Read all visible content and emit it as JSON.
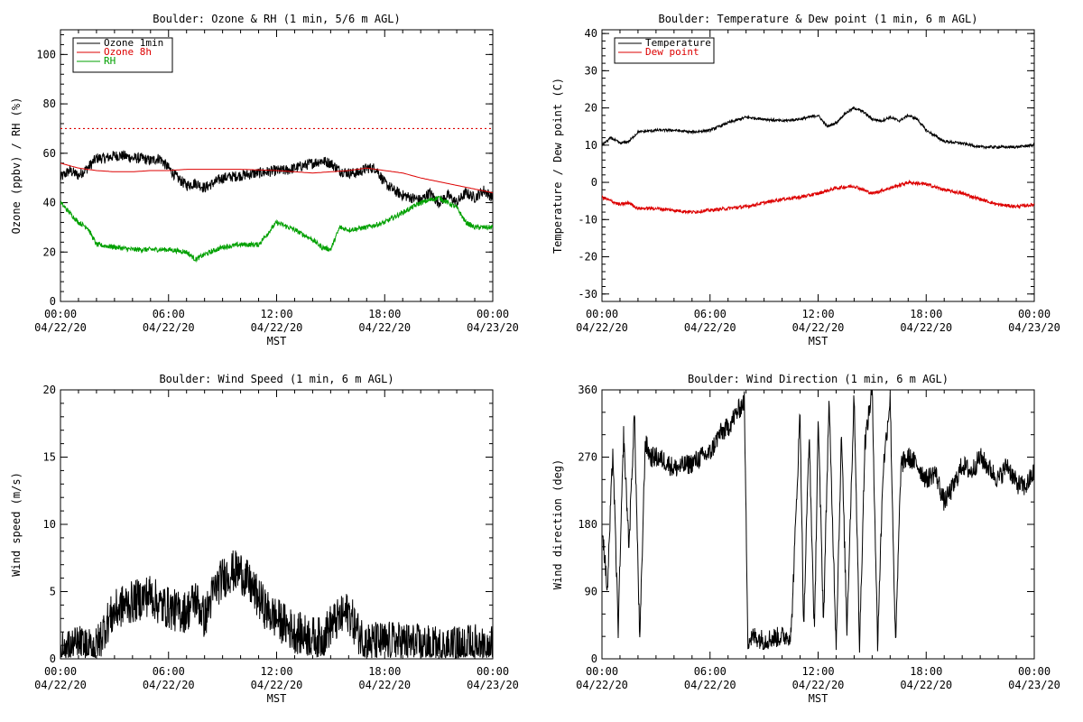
{
  "colors": {
    "black": "#000000",
    "red": "#dd0000",
    "green": "#00a000"
  },
  "chart_data": [
    {
      "id": "ozone-rh",
      "type": "line",
      "title": "Boulder: Ozone & RH (1 min, 5/6 m AGL)",
      "xlabel": "MST",
      "ylabel": "Ozone (ppbv) / RH (%)",
      "xlim": [
        0,
        24
      ],
      "ylim": [
        0,
        110
      ],
      "y_ticks": [
        0,
        20,
        40,
        60,
        80,
        100
      ],
      "x_ticks": [
        {
          "value": 0,
          "time": "00:00",
          "date": "04/22/20"
        },
        {
          "value": 6,
          "time": "06:00",
          "date": "04/22/20"
        },
        {
          "value": 12,
          "time": "12:00",
          "date": "04/22/20"
        },
        {
          "value": 18,
          "time": "18:00",
          "date": "04/22/20"
        },
        {
          "value": 24,
          "time": "00:00",
          "date": "04/23/20"
        }
      ],
      "reference_line": {
        "y": 70,
        "style": "dotted",
        "color": "#dd0000"
      },
      "legend": "top-left",
      "series": [
        {
          "name": "Ozone 1min",
          "color": "#000000",
          "noise": 2.2,
          "x": [
            0,
            0.5,
            1,
            1.5,
            2,
            2.5,
            3,
            3.5,
            4,
            4.5,
            5,
            5.5,
            6,
            6.5,
            7,
            7.5,
            8,
            9,
            10,
            11,
            12,
            12.5,
            13,
            14,
            14.5,
            15,
            15.5,
            16,
            16.5,
            17,
            17.5,
            18,
            18.5,
            19,
            19.5,
            20,
            20.5,
            21,
            21.5,
            22,
            22.5,
            23,
            23.5,
            24
          ],
          "y": [
            50,
            53,
            51,
            54,
            58,
            58,
            59,
            59,
            58,
            58,
            57,
            58,
            54,
            50,
            47,
            48,
            46,
            50,
            51,
            52,
            53,
            53,
            54,
            56,
            57,
            56,
            53,
            52,
            52,
            54,
            54,
            48,
            45,
            43,
            42,
            41,
            44,
            40,
            43,
            40,
            44,
            42,
            45,
            42
          ]
        },
        {
          "name": "Ozone 8h",
          "color": "#dd0000",
          "noise": 0,
          "x": [
            0,
            1,
            2,
            3,
            4,
            5,
            6,
            7,
            8,
            10,
            12,
            14,
            16,
            17,
            18,
            19,
            20,
            21,
            22,
            23,
            24
          ],
          "y": [
            56,
            54,
            53,
            52.5,
            52.5,
            53,
            53,
            53.5,
            53.5,
            53.5,
            53,
            52,
            53,
            54,
            53,
            52,
            50,
            48.5,
            47,
            45.5,
            44
          ]
        },
        {
          "name": "RH",
          "color": "#00a000",
          "noise": 1,
          "x": [
            0,
            0.5,
            1,
            1.5,
            2,
            3,
            4,
            5,
            6,
            7,
            7.5,
            8,
            9,
            10,
            11,
            12,
            13,
            14,
            14.5,
            15,
            15.5,
            16,
            17,
            18,
            19,
            20,
            21,
            22,
            22.5,
            23,
            24
          ],
          "y": [
            40,
            36,
            32,
            30,
            23,
            22,
            21,
            21,
            21,
            20,
            17,
            19,
            22,
            23,
            23,
            32,
            29,
            25,
            22,
            21,
            30,
            29,
            30,
            32,
            36,
            40,
            42,
            38,
            32,
            30,
            30
          ]
        }
      ]
    },
    {
      "id": "temp-dew",
      "type": "line",
      "title": "Boulder: Temperature & Dew point (1 min, 6 m AGL)",
      "xlabel": "MST",
      "ylabel": "Temperature / Dew point (C)",
      "xlim": [
        0,
        24
      ],
      "ylim": [
        -32,
        41
      ],
      "y_ticks": [
        -30,
        -20,
        -10,
        0,
        10,
        20,
        30,
        40
      ],
      "x_ticks": [
        {
          "value": 0,
          "time": "00:00",
          "date": "04/22/20"
        },
        {
          "value": 6,
          "time": "06:00",
          "date": "04/22/20"
        },
        {
          "value": 12,
          "time": "12:00",
          "date": "04/22/20"
        },
        {
          "value": 18,
          "time": "18:00",
          "date": "04/22/20"
        },
        {
          "value": 24,
          "time": "00:00",
          "date": "04/23/20"
        }
      ],
      "legend": "top-left",
      "series": [
        {
          "name": "Temperature",
          "color": "#000000",
          "noise": 0.35,
          "x": [
            0,
            0.5,
            1,
            1.5,
            2,
            3,
            4,
            5,
            6,
            7,
            8,
            9,
            10,
            11,
            12,
            12.5,
            13,
            13.5,
            14,
            14.5,
            15,
            15.5,
            16,
            16.5,
            17,
            17.5,
            18,
            19,
            20,
            21,
            22,
            23,
            24
          ],
          "y": [
            10,
            12,
            10.5,
            11,
            13.5,
            14,
            14,
            13.5,
            14,
            16,
            17.5,
            17,
            16.5,
            17,
            18,
            15,
            16,
            18.5,
            20,
            19,
            17,
            16.5,
            17.5,
            16.5,
            18,
            17,
            14,
            11,
            10.5,
            9.5,
            9.5,
            9.5,
            10
          ]
        },
        {
          "name": "Dew point",
          "color": "#dd0000",
          "noise": 0.45,
          "x": [
            0,
            0.5,
            1,
            1.5,
            2,
            3,
            4,
            5,
            6,
            7,
            8,
            9,
            10,
            11,
            12,
            13,
            14,
            15,
            16,
            17,
            18,
            19,
            20,
            21,
            22,
            23,
            24
          ],
          "y": [
            -4,
            -5,
            -6,
            -5.5,
            -7,
            -7,
            -7.5,
            -8,
            -7.5,
            -7,
            -6.5,
            -5.5,
            -4.5,
            -4,
            -3,
            -1.5,
            -1,
            -3,
            -1.5,
            0,
            -0.5,
            -2,
            -3,
            -4.5,
            -6,
            -6.5,
            -6
          ]
        }
      ]
    },
    {
      "id": "wind-speed",
      "type": "line",
      "title": "Boulder: Wind Speed (1 min, 6 m AGL)",
      "xlabel": "MST",
      "ylabel": "Wind speed (m/s)",
      "xlim": [
        0,
        24
      ],
      "ylim": [
        0,
        20
      ],
      "y_ticks": [
        0,
        5,
        10,
        15,
        20
      ],
      "x_ticks": [
        {
          "value": 0,
          "time": "00:00",
          "date": "04/22/20"
        },
        {
          "value": 6,
          "time": "06:00",
          "date": "04/22/20"
        },
        {
          "value": 12,
          "time": "12:00",
          "date": "04/22/20"
        },
        {
          "value": 18,
          "time": "18:00",
          "date": "04/22/20"
        },
        {
          "value": 24,
          "time": "00:00",
          "date": "04/23/20"
        }
      ],
      "series": [
        {
          "name": "",
          "color": "#000000",
          "noise": 1.6,
          "x": [
            0,
            0.5,
            1,
            1.5,
            2,
            2.5,
            3,
            3.5,
            4,
            4.5,
            5,
            5.5,
            6,
            6.5,
            7,
            7.5,
            8,
            8.5,
            9,
            9.5,
            10,
            10.5,
            11,
            11.5,
            12,
            12.5,
            13,
            13.5,
            14,
            14.5,
            15,
            15.5,
            16,
            16.5,
            17,
            18,
            19,
            20,
            21,
            22,
            23,
            24
          ],
          "y": [
            0.8,
            0.6,
            1,
            0.7,
            0.8,
            2.5,
            3.5,
            4,
            4.2,
            4.5,
            4.8,
            4,
            3.8,
            3.5,
            3.5,
            4.5,
            3,
            5,
            6,
            6.5,
            6.5,
            5.5,
            4.5,
            3.5,
            3,
            2.5,
            2,
            1.8,
            1.6,
            1.5,
            2.5,
            3,
            3.5,
            2,
            1.2,
            1.2,
            1.2,
            1,
            0.8,
            0.9,
            1.1,
            1
          ]
        }
      ]
    },
    {
      "id": "wind-dir",
      "type": "line",
      "title": "Boulder: Wind Direction (1 min, 6 m AGL)",
      "xlabel": "MST",
      "ylabel": "Wind direction (deg)",
      "xlim": [
        0,
        24
      ],
      "ylim": [
        0,
        360
      ],
      "y_ticks": [
        0,
        90,
        180,
        270,
        360
      ],
      "x_ticks": [
        {
          "value": 0,
          "time": "00:00",
          "date": "04/22/20"
        },
        {
          "value": 6,
          "time": "06:00",
          "date": "04/22/20"
        },
        {
          "value": 12,
          "time": "12:00",
          "date": "04/22/20"
        },
        {
          "value": 18,
          "time": "18:00",
          "date": "04/22/20"
        },
        {
          "value": 24,
          "time": "00:00",
          "date": "04/23/20"
        }
      ],
      "series": [
        {
          "name": "",
          "color": "#000000",
          "noise": 14,
          "x": [
            0,
            0.3,
            0.6,
            0.9,
            1.2,
            1.5,
            1.8,
            2.1,
            2.4,
            2.7,
            3,
            3.5,
            4,
            4.5,
            5,
            5.5,
            6,
            6.5,
            7,
            7.5,
            7.9,
            8.1,
            8.5,
            9,
            9.5,
            10,
            10.5,
            11,
            11.2,
            11.5,
            11.8,
            12,
            12.3,
            12.6,
            13,
            13.3,
            13.6,
            14,
            14.3,
            14.6,
            15,
            15.3,
            15.6,
            16,
            16.3,
            16.6,
            17,
            17.5,
            18,
            18.5,
            19,
            19.5,
            20,
            20.5,
            21,
            21.5,
            22,
            22.5,
            23,
            23.5,
            24
          ],
          "y": [
            180,
            90,
            280,
            40,
            300,
            150,
            330,
            20,
            290,
            270,
            270,
            265,
            255,
            258,
            262,
            270,
            275,
            300,
            310,
            330,
            345,
            25,
            30,
            25,
            28,
            30,
            32,
            330,
            40,
            300,
            30,
            320,
            50,
            345,
            20,
            300,
            40,
            355,
            15,
            290,
            360,
            20,
            250,
            350,
            15,
            260,
            270,
            260,
            240,
            250,
            210,
            230,
            260,
            250,
            270,
            255,
            240,
            260,
            235,
            230,
            250
          ]
        }
      ]
    }
  ]
}
